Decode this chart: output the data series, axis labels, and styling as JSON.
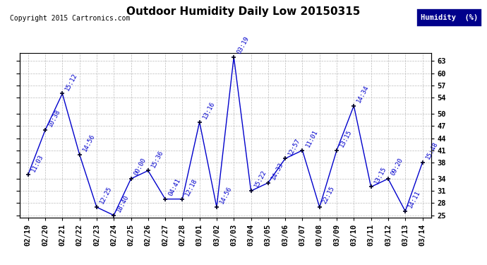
{
  "title": "Outdoor Humidity Daily Low 20150315",
  "copyright": "Copyright 2015 Cartronics.com",
  "legend_label": "Humidity  (%)",
  "x_labels": [
    "02/19",
    "02/20",
    "02/21",
    "02/22",
    "02/23",
    "02/24",
    "02/25",
    "02/26",
    "02/27",
    "02/28",
    "03/01",
    "03/02",
    "03/03",
    "03/04",
    "03/05",
    "03/06",
    "03/07",
    "03/08",
    "03/09",
    "03/10",
    "03/11",
    "03/12",
    "03/13",
    "03/14"
  ],
  "y_values": [
    35,
    46,
    55,
    40,
    27,
    25,
    34,
    36,
    29,
    29,
    48,
    27,
    64,
    31,
    33,
    39,
    41,
    27,
    41,
    52,
    32,
    34,
    26,
    38
  ],
  "time_labels": [
    "11:03",
    "10:38",
    "15:12",
    "14:56",
    "12:25",
    "18:40",
    "00:00",
    "15:36",
    "04:41",
    "12:18",
    "13:16",
    "14:56",
    "03:19",
    "15:22",
    "14:33",
    "12:57",
    "11:01",
    "22:15",
    "13:15",
    "14:34",
    "13:15",
    "09:20",
    "14:11",
    "15:48"
  ],
  "ylim_min": 24.5,
  "ylim_max": 65,
  "yticks": [
    25,
    28,
    31,
    34,
    38,
    41,
    44,
    47,
    50,
    54,
    57,
    60,
    63
  ],
  "line_color": "#0000CC",
  "marker_color": "#000022",
  "bg_color": "#ffffff",
  "grid_color": "#bbbbbb",
  "title_fontsize": 11,
  "label_fontsize": 6.5,
  "tick_fontsize": 7.5,
  "copyright_fontsize": 7,
  "legend_fontsize": 7.5
}
